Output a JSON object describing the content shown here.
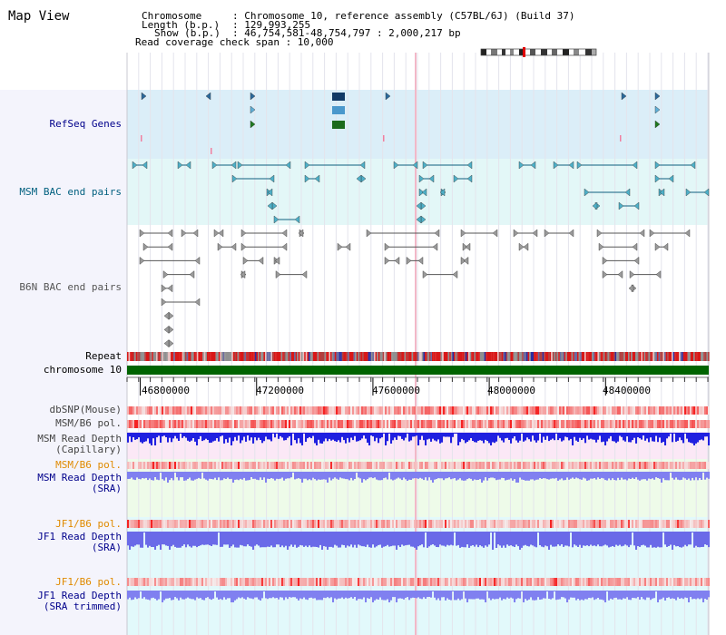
{
  "title": "Map View",
  "header": {
    "chromosome_key": "Chromosome",
    "chromosome_val": ": Chromosome 10, reference assembly (C57BL/6J) (Build 37)",
    "length_key": "Length (b.p.)",
    "length_val": ": 129,993,255",
    "show_key": "Show (b.p.)",
    "show_val": ": 46,754,581-48,754,797 : 2,000,217 bp",
    "coverage": "Read coverage check span : 10,000"
  },
  "tracks": {
    "refseq": "RefSeq Genes",
    "msm_bac": "MSM BAC end pairs",
    "b6n_bac": "B6N BAC end pairs",
    "repeat": "Repeat",
    "chromosome": "chromosome 10",
    "dbsnp": "dbSNP(Mouse)",
    "msm_b6_pol": "MSM/B6 pol.",
    "msm_depth_cap_1": "MSM Read Depth",
    "msm_depth_cap_2": "(Capillary)",
    "msm_b6_pol_2": "MSM/B6 pol.",
    "msm_depth_sra_1": "MSM Read Depth",
    "msm_depth_sra_2": "(SRA)",
    "jf1_pol_1": "JF1/B6 pol.",
    "jf1_depth_sra_1": "JF1 Read Depth",
    "jf1_depth_sra_2": "(SRA)",
    "jf1_pol_2": "JF1/B6 pol.",
    "jf1_depth_trim_1": "JF1 Read Depth",
    "jf1_depth_trim_2": "(SRA trimmed)"
  },
  "axis": {
    "ticks": [
      "46800000",
      "47200000",
      "47600000",
      "48000000",
      "48400000"
    ],
    "tick_values": [
      46800000,
      47200000,
      47600000,
      48000000,
      48400000
    ],
    "range": [
      46754581,
      48754797
    ]
  },
  "colors": {
    "refseq_bg": "#dbeef8",
    "msm_bac_bg": "#e3f7f7",
    "b6n_bac_bg": "#ffffff",
    "refseq_label": "#00008b",
    "msm_label": "#005f7f",
    "b6n_label": "#555555",
    "depth_label": "#00008b",
    "pol_label": "#e08a00",
    "chromosome_bar": "#006400",
    "depth_bar": "#2020e0",
    "depth_bar_light": "#8080f0"
  }
}
